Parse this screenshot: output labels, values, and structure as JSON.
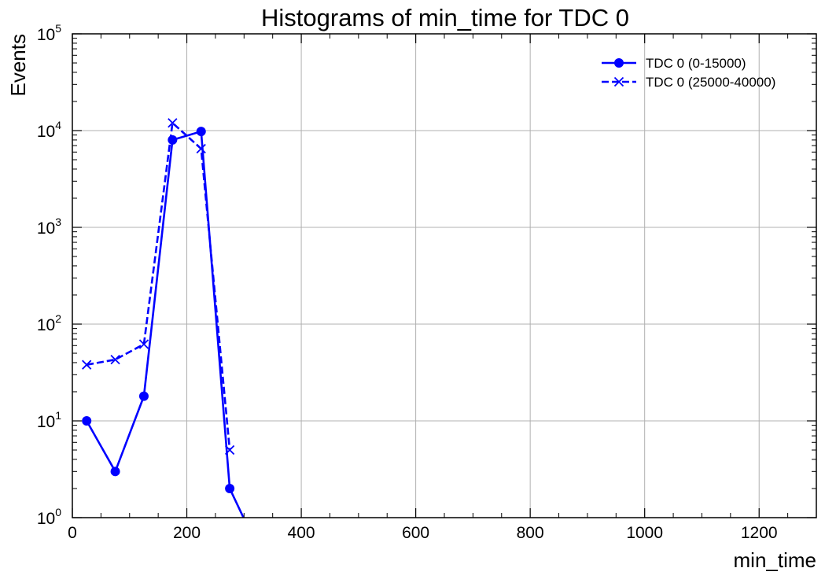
{
  "chart_data": {
    "type": "line",
    "title": "Histograms of min_time for TDC 0",
    "xlabel": "min_time",
    "ylabel": "Events",
    "xlim": [
      0,
      1300
    ],
    "ylim": [
      1,
      100000
    ],
    "yscale": "log",
    "grid": true,
    "legend_position": "top-right",
    "x_ticks": [
      0,
      200,
      400,
      600,
      800,
      1000,
      1200
    ],
    "y_ticks": [
      {
        "base": "10",
        "exp": "0",
        "value": 1
      },
      {
        "base": "10",
        "exp": "1",
        "value": 10
      },
      {
        "base": "10",
        "exp": "2",
        "value": 100
      },
      {
        "base": "10",
        "exp": "3",
        "value": 1000
      },
      {
        "base": "10",
        "exp": "4",
        "value": 10000
      },
      {
        "base": "10",
        "exp": "5",
        "value": 100000
      }
    ],
    "series": [
      {
        "name": "TDC 0 (0-15000)",
        "color": "#0000ff",
        "line_style": "solid",
        "marker": "circle",
        "x": [
          25,
          75,
          125,
          175,
          225,
          275,
          325
        ],
        "y": [
          10,
          3,
          18,
          8000,
          9800,
          2,
          0
        ]
      },
      {
        "name": "TDC 0 (25000-40000)",
        "color": "#0000ff",
        "line_style": "dashed",
        "marker": "x",
        "x": [
          25,
          75,
          125,
          175,
          225,
          275
        ],
        "y": [
          38,
          43,
          62,
          12000,
          6500,
          5
        ]
      }
    ]
  }
}
